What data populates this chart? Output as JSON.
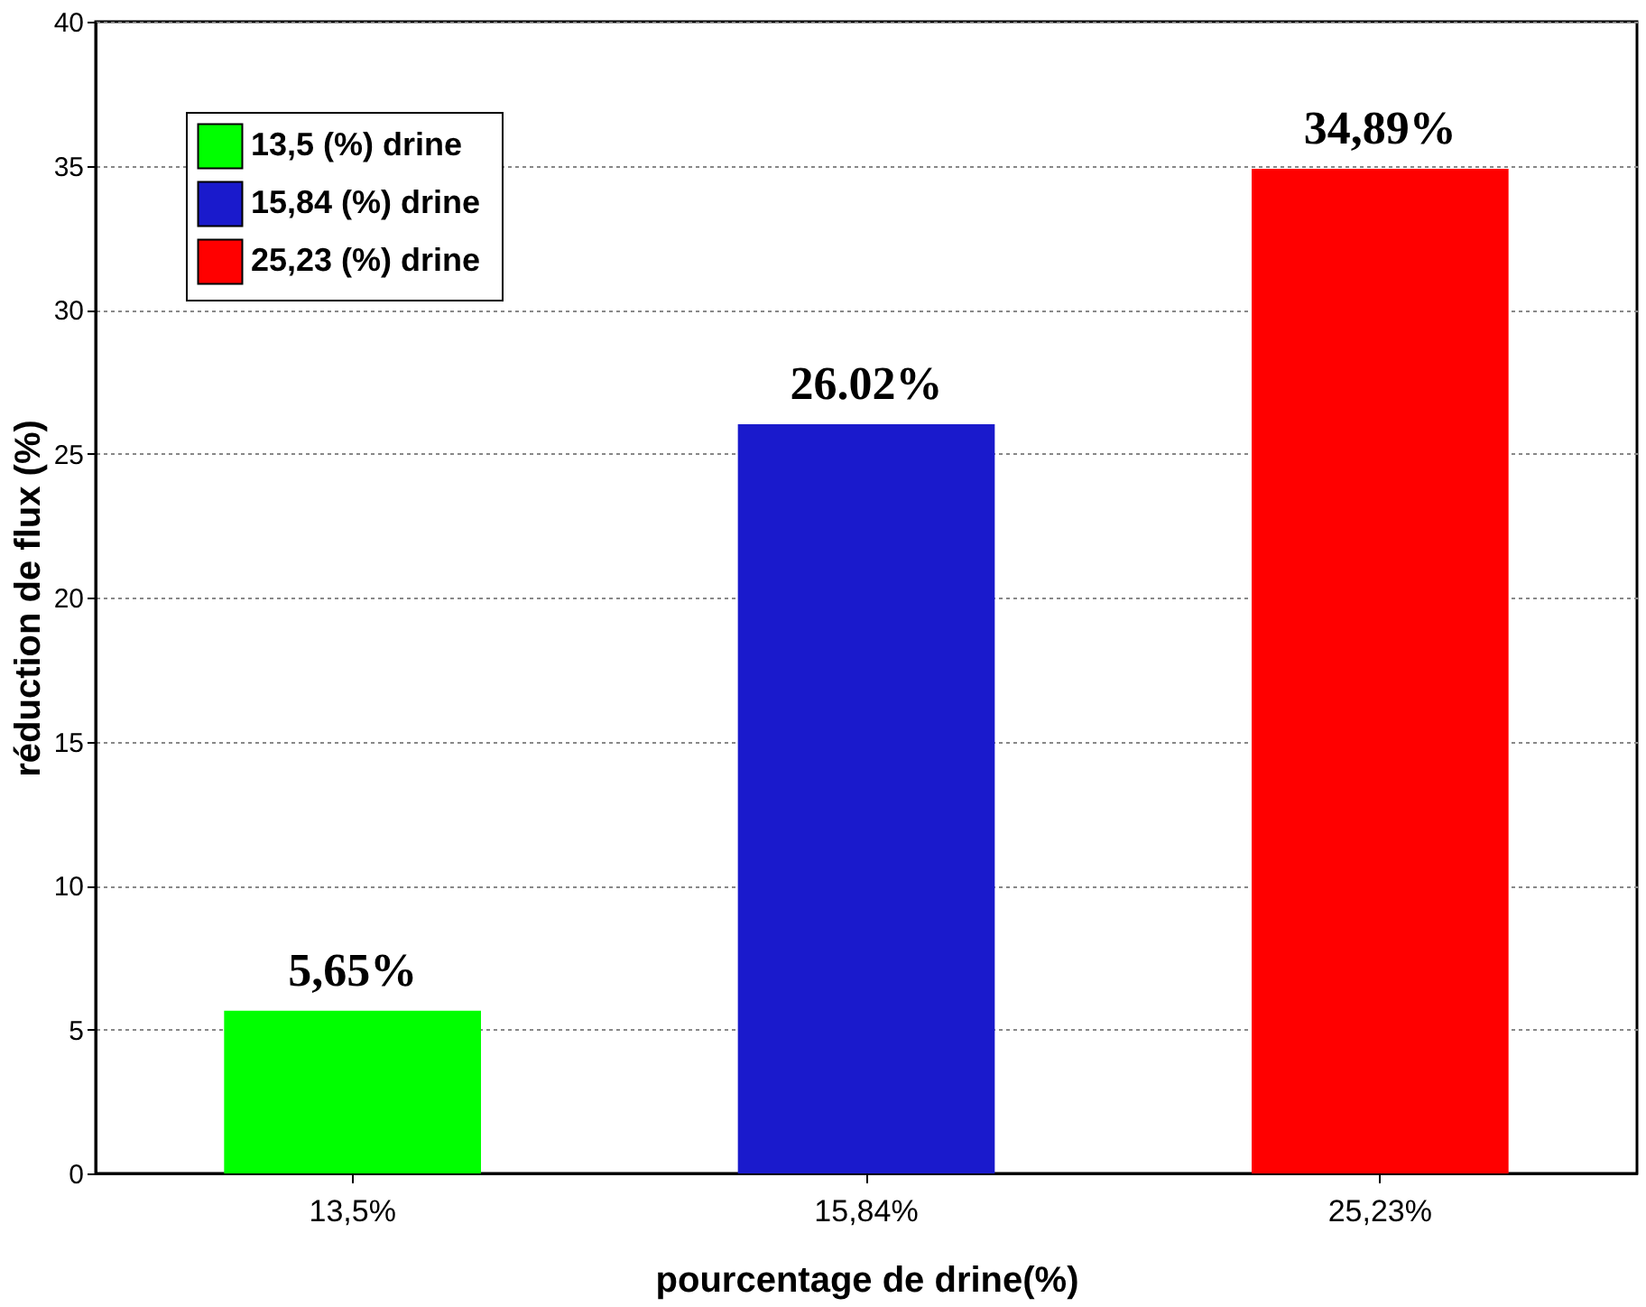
{
  "chart_data": {
    "type": "bar",
    "xlabel": "pourcentage de drine(%)",
    "ylabel": "réduction de flux (%)",
    "categories": [
      "13,5%",
      "15,84%",
      "25,23%"
    ],
    "series": [
      {
        "name": "13,5  (%) drine",
        "color": "#00ff00",
        "values": [
          5.65,
          null,
          null
        ],
        "value_labels": [
          "5,65%",
          null,
          null
        ]
      },
      {
        "name": "15,84  (%) drine",
        "color": "#1a1acc",
        "values": [
          null,
          26.02,
          null
        ],
        "value_labels": [
          null,
          "26.02%",
          null
        ]
      },
      {
        "name": "25,23 (%) drine",
        "color": "#ff0000",
        "values": [
          null,
          null,
          34.89
        ],
        "value_labels": [
          null,
          null,
          "34,89%"
        ]
      }
    ],
    "ylim": [
      0,
      40
    ],
    "yticks": [
      0,
      5,
      10,
      15,
      20,
      25,
      30,
      35,
      40
    ],
    "grid": "y",
    "legend": "top left"
  }
}
